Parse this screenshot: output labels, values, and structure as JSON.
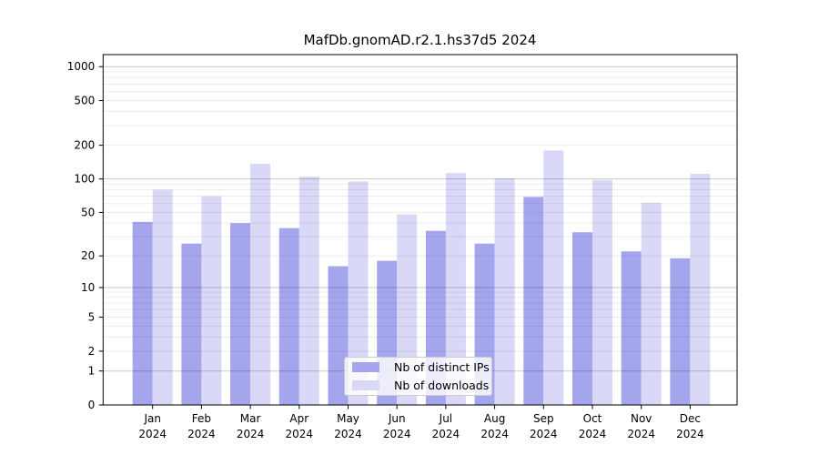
{
  "title": "MafDb.gnomAD.r2.1.hs37d5 2024",
  "legend": {
    "items": [
      {
        "label": "Nb of distinct IPs"
      },
      {
        "label": "Nb of downloads"
      }
    ]
  },
  "xaxis": {
    "months": [
      "Jan",
      "Feb",
      "Mar",
      "Apr",
      "May",
      "Jun",
      "Jul",
      "Aug",
      "Sep",
      "Oct",
      "Nov",
      "Dec"
    ],
    "year": "2024"
  },
  "yaxis": {
    "tick_labels": [
      "0",
      "1",
      "2",
      "5",
      "10",
      "20",
      "50",
      "100",
      "200",
      "500",
      "1000"
    ]
  },
  "chart_data": {
    "type": "bar",
    "title": "MafDb.gnomAD.r2.1.hs37d5 2024",
    "categories": [
      "Jan 2024",
      "Feb 2024",
      "Mar 2024",
      "Apr 2024",
      "May 2024",
      "Jun 2024",
      "Jul 2024",
      "Aug 2024",
      "Sep 2024",
      "Oct 2024",
      "Nov 2024",
      "Dec 2024"
    ],
    "series": [
      {
        "name": "Nb of distinct IPs",
        "color": "#a5a5ee",
        "values": [
          41,
          26,
          40,
          36,
          16,
          18,
          34,
          26,
          69,
          33,
          22,
          19
        ]
      },
      {
        "name": "Nb of downloads",
        "color": "#d9d9f7",
        "values": [
          80,
          70,
          137,
          105,
          95,
          48,
          113,
          101,
          180,
          98,
          61,
          111
        ]
      }
    ],
    "yscale": "log10(value+1)",
    "yticks": [
      0,
      1,
      2,
      5,
      10,
      20,
      50,
      100,
      200,
      500,
      1000
    ],
    "ylim": [
      0,
      1280
    ],
    "grid": "major+minor",
    "legend_position": "lower-center"
  }
}
